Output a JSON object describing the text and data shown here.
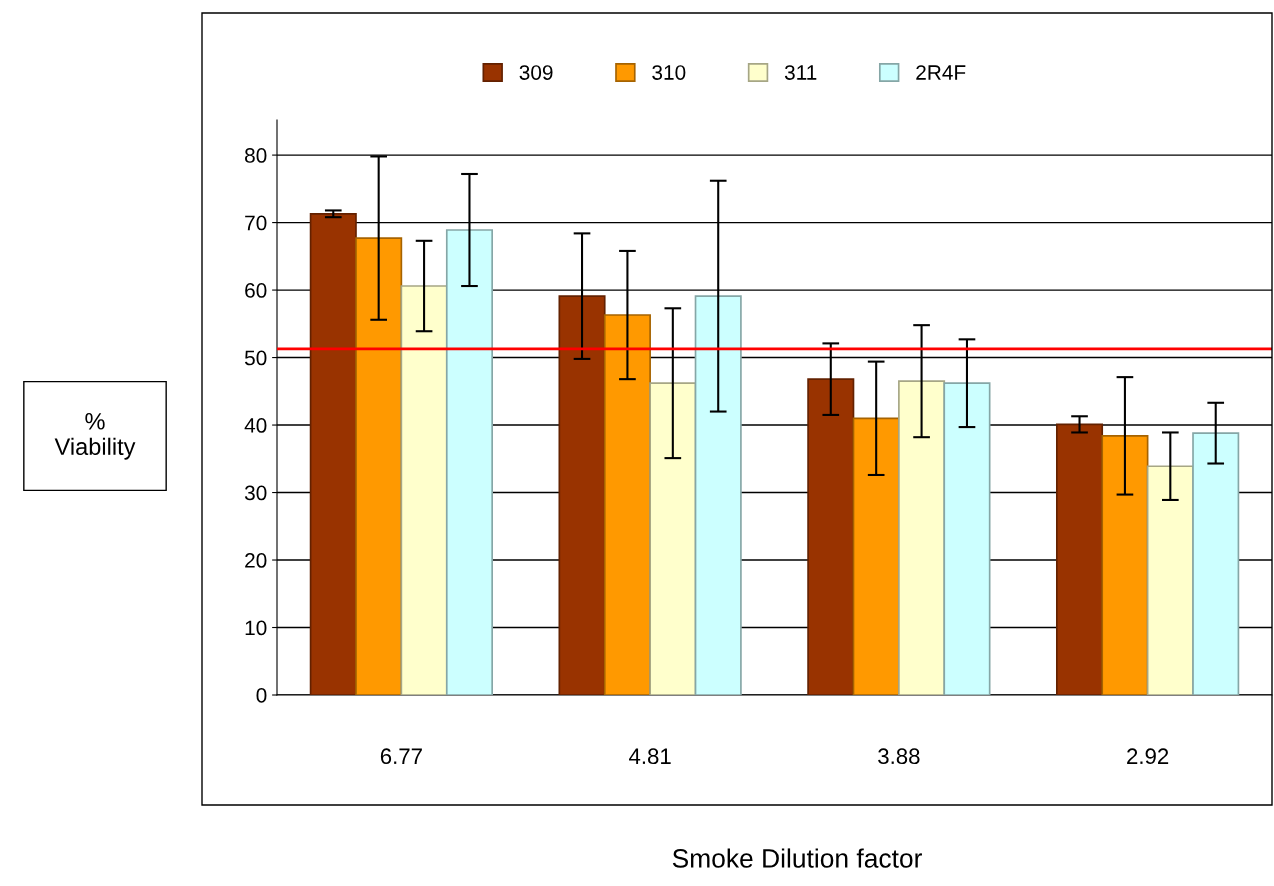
{
  "chart_data": {
    "type": "bar",
    "xlabel": "Smoke Dilution factor",
    "ylabel": "%\nViability",
    "categories": [
      "6.77",
      "4.81",
      "3.88",
      "2.92"
    ],
    "series": [
      {
        "name": "309",
        "color": "#993300",
        "values": [
          71.3,
          59.1,
          46.8,
          40.1
        ],
        "errors": [
          0.5,
          9.3,
          5.3,
          1.2
        ]
      },
      {
        "name": "310",
        "color": "#ff9900",
        "values": [
          67.7,
          56.3,
          41.0,
          38.4
        ],
        "errors": [
          12.1,
          9.5,
          8.4,
          8.7
        ]
      },
      {
        "name": "311",
        "color": "#ffffcc",
        "values": [
          60.6,
          46.2,
          46.5,
          33.9
        ],
        "errors": [
          6.7,
          11.1,
          8.3,
          5.0
        ]
      },
      {
        "name": "2R4F",
        "color": "#ccffff",
        "values": [
          68.9,
          59.1,
          46.2,
          38.8
        ],
        "errors": [
          8.3,
          17.1,
          6.5,
          4.5
        ]
      }
    ],
    "ylim": [
      0,
      85.2
    ],
    "yticks": [
      0,
      10,
      20,
      30,
      40,
      50,
      60,
      70,
      80
    ],
    "ref_lines": [
      {
        "axis": "y",
        "value": 51.3,
        "color": "#ff0000"
      }
    ],
    "grid": "y",
    "legend": "top"
  }
}
